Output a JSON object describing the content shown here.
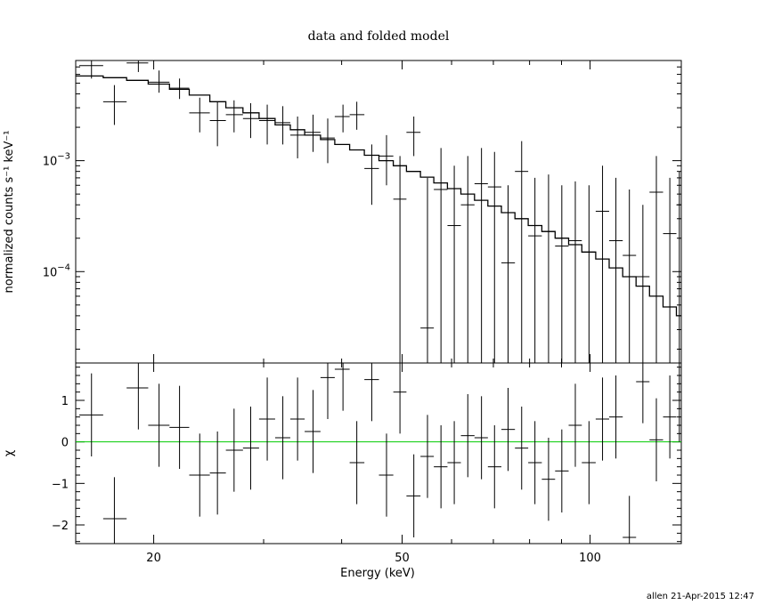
{
  "chart_data": {
    "type": "scatter",
    "title": "data and folded model",
    "xlabel": "Energy (keV)",
    "footer": "allen 21-Apr-2015 12:47",
    "x_scale": "log",
    "xlim": [
      15,
      140
    ],
    "x_ticks": [
      {
        "value": 20,
        "label": "20"
      },
      {
        "value": 50,
        "label": "50"
      },
      {
        "value": 100,
        "label": "100"
      }
    ],
    "top_panel": {
      "ylabel": "normalized counts s⁻¹ keV⁻¹",
      "y_scale": "log",
      "ylim": [
        1.5e-05,
        0.008
      ],
      "y_ticks": [
        {
          "value": 0.001,
          "label_base": "10",
          "label_exp": "−3"
        },
        {
          "value": 0.0001,
          "label_base": "10",
          "label_exp": "−4"
        }
      ],
      "data_points": [
        {
          "x": 15.9,
          "xlo": 15.2,
          "xhi": 16.6,
          "y": 0.0072,
          "ylo": 0.0055,
          "yhi": 0.0082
        },
        {
          "x": 17.3,
          "xlo": 16.6,
          "xhi": 18.1,
          "y": 0.0034,
          "ylo": 0.0021,
          "yhi": 0.0048
        },
        {
          "x": 18.9,
          "xlo": 18.1,
          "xhi": 19.6,
          "y": 0.0076,
          "ylo": 0.0063,
          "yhi": 0.0082
        },
        {
          "x": 20.4,
          "xlo": 19.6,
          "xhi": 21.2,
          "y": 0.0051,
          "ylo": 0.0041,
          "yhi": 0.0065
        },
        {
          "x": 22.0,
          "xlo": 21.2,
          "xhi": 22.8,
          "y": 0.0045,
          "ylo": 0.0036,
          "yhi": 0.0055
        },
        {
          "x": 23.7,
          "xlo": 22.8,
          "xhi": 24.6,
          "y": 0.0027,
          "ylo": 0.0018,
          "yhi": 0.0037
        },
        {
          "x": 25.3,
          "xlo": 24.6,
          "xhi": 26.1,
          "y": 0.0023,
          "ylo": 0.00135,
          "yhi": 0.0034
        },
        {
          "x": 26.9,
          "xlo": 26.1,
          "xhi": 27.8,
          "y": 0.0026,
          "ylo": 0.0018,
          "yhi": 0.0035
        },
        {
          "x": 28.6,
          "xlo": 27.8,
          "xhi": 29.5,
          "y": 0.0024,
          "ylo": 0.0016,
          "yhi": 0.0033
        },
        {
          "x": 30.4,
          "xlo": 29.5,
          "xhi": 31.3,
          "y": 0.0023,
          "ylo": 0.0014,
          "yhi": 0.0032
        },
        {
          "x": 32.2,
          "xlo": 31.3,
          "xhi": 33.1,
          "y": 0.0022,
          "ylo": 0.0014,
          "yhi": 0.0031
        },
        {
          "x": 34.0,
          "xlo": 33.1,
          "xhi": 34.9,
          "y": 0.0017,
          "ylo": 0.00105,
          "yhi": 0.0025
        },
        {
          "x": 36.0,
          "xlo": 34.9,
          "xhi": 37.0,
          "y": 0.0018,
          "ylo": 0.0012,
          "yhi": 0.0026
        },
        {
          "x": 38.0,
          "xlo": 37.0,
          "xhi": 39.0,
          "y": 0.0016,
          "ylo": 0.00095,
          "yhi": 0.0024
        },
        {
          "x": 40.2,
          "xlo": 39.0,
          "xhi": 41.2,
          "y": 0.0025,
          "ylo": 0.0018,
          "yhi": 0.0032
        },
        {
          "x": 42.3,
          "xlo": 41.2,
          "xhi": 43.5,
          "y": 0.0026,
          "ylo": 0.0019,
          "yhi": 0.0034
        },
        {
          "x": 44.7,
          "xlo": 43.5,
          "xhi": 45.9,
          "y": 0.00085,
          "ylo": 0.0004,
          "yhi": 0.0014
        },
        {
          "x": 47.2,
          "xlo": 45.9,
          "xhi": 48.4,
          "y": 0.0011,
          "ylo": 0.0006,
          "yhi": 0.0017
        },
        {
          "x": 49.6,
          "xlo": 48.4,
          "xhi": 50.8,
          "y": 0.00045,
          "ylo": 1.5e-05,
          "yhi": 0.0011
        },
        {
          "x": 52.2,
          "xlo": 50.8,
          "xhi": 53.5,
          "y": 0.0018,
          "ylo": 0.0011,
          "yhi": 0.0025
        },
        {
          "x": 54.9,
          "xlo": 53.5,
          "xhi": 56.2,
          "y": 3.1e-05,
          "ylo": 1.5e-05,
          "yhi": 0.0007
        },
        {
          "x": 57.7,
          "xlo": 56.2,
          "xhi": 59.1,
          "y": 0.00055,
          "ylo": 1.5e-05,
          "yhi": 0.0013
        },
        {
          "x": 60.6,
          "xlo": 59.1,
          "xhi": 62.1,
          "y": 0.00026,
          "ylo": 1.5e-05,
          "yhi": 0.0009
        },
        {
          "x": 63.7,
          "xlo": 62.1,
          "xhi": 65.3,
          "y": 0.0004,
          "ylo": 1.5e-05,
          "yhi": 0.0011
        },
        {
          "x": 67.0,
          "xlo": 65.3,
          "xhi": 68.6,
          "y": 0.00062,
          "ylo": 1.5e-05,
          "yhi": 0.0013
        },
        {
          "x": 70.3,
          "xlo": 68.6,
          "xhi": 72.1,
          "y": 0.00058,
          "ylo": 1.5e-05,
          "yhi": 0.0012
        },
        {
          "x": 73.9,
          "xlo": 72.1,
          "xhi": 75.8,
          "y": 0.00012,
          "ylo": 1.5e-05,
          "yhi": 0.0006
        },
        {
          "x": 77.7,
          "xlo": 75.8,
          "xhi": 79.6,
          "y": 0.0008,
          "ylo": 1.5e-05,
          "yhi": 0.0015
        },
        {
          "x": 81.6,
          "xlo": 79.6,
          "xhi": 83.7,
          "y": 0.00021,
          "ylo": 1.5e-05,
          "yhi": 0.0007
        },
        {
          "x": 85.8,
          "xlo": 83.7,
          "xhi": 87.9,
          "y": 0.00023,
          "ylo": 1.5e-05,
          "yhi": 0.00075
        },
        {
          "x": 90.1,
          "xlo": 87.9,
          "xhi": 92.4,
          "y": 0.00017,
          "ylo": 1.5e-05,
          "yhi": 0.0006
        },
        {
          "x": 94.7,
          "xlo": 92.4,
          "xhi": 97.0,
          "y": 0.00019,
          "ylo": 1.5e-05,
          "yhi": 0.00065
        },
        {
          "x": 99.6,
          "xlo": 97.0,
          "xhi": 102.1,
          "y": 0.00015,
          "ylo": 1.5e-05,
          "yhi": 0.0006
        },
        {
          "x": 104.7,
          "xlo": 102.1,
          "xhi": 107.3,
          "y": 0.00035,
          "ylo": 1.5e-05,
          "yhi": 0.0009
        },
        {
          "x": 110.0,
          "xlo": 107.3,
          "xhi": 112.8,
          "y": 0.00019,
          "ylo": 1.5e-05,
          "yhi": 0.0007
        },
        {
          "x": 115.6,
          "xlo": 112.8,
          "xhi": 118.5,
          "y": 0.00014,
          "ylo": 1.5e-05,
          "yhi": 0.00055
        },
        {
          "x": 121.5,
          "xlo": 118.5,
          "xhi": 124.5,
          "y": 9e-05,
          "ylo": 1.5e-05,
          "yhi": 0.0004
        },
        {
          "x": 127.7,
          "xlo": 124.5,
          "xhi": 130.9,
          "y": 0.00052,
          "ylo": 1.5e-05,
          "yhi": 0.0011
        },
        {
          "x": 134.2,
          "xlo": 130.9,
          "xhi": 137.5,
          "y": 0.00022,
          "ylo": 1.5e-05,
          "yhi": 0.0007
        },
        {
          "x": 139.0,
          "xlo": 137.5,
          "xhi": 140.0,
          "y": 0.0004,
          "ylo": 1.5e-05,
          "yhi": 0.0008
        }
      ],
      "model_steps": [
        {
          "x0": 15.0,
          "x1": 16.6,
          "y": 0.0058
        },
        {
          "x0": 16.6,
          "x1": 18.1,
          "y": 0.0056
        },
        {
          "x0": 18.1,
          "x1": 19.6,
          "y": 0.0053
        },
        {
          "x0": 19.6,
          "x1": 21.2,
          "y": 0.0049
        },
        {
          "x0": 21.2,
          "x1": 22.8,
          "y": 0.0044
        },
        {
          "x0": 22.8,
          "x1": 24.6,
          "y": 0.0039
        },
        {
          "x0": 24.6,
          "x1": 26.1,
          "y": 0.0034
        },
        {
          "x0": 26.1,
          "x1": 27.8,
          "y": 0.003
        },
        {
          "x0": 27.8,
          "x1": 29.5,
          "y": 0.0027
        },
        {
          "x0": 29.5,
          "x1": 31.3,
          "y": 0.0024
        },
        {
          "x0": 31.3,
          "x1": 33.1,
          "y": 0.0021
        },
        {
          "x0": 33.1,
          "x1": 34.9,
          "y": 0.0019
        },
        {
          "x0": 34.9,
          "x1": 37.0,
          "y": 0.0017
        },
        {
          "x0": 37.0,
          "x1": 39.0,
          "y": 0.00155
        },
        {
          "x0": 39.0,
          "x1": 41.2,
          "y": 0.0014
        },
        {
          "x0": 41.2,
          "x1": 43.5,
          "y": 0.00125
        },
        {
          "x0": 43.5,
          "x1": 45.9,
          "y": 0.00112
        },
        {
          "x0": 45.9,
          "x1": 48.4,
          "y": 0.001
        },
        {
          "x0": 48.4,
          "x1": 50.8,
          "y": 0.0009
        },
        {
          "x0": 50.8,
          "x1": 53.5,
          "y": 0.0008
        },
        {
          "x0": 53.5,
          "x1": 56.2,
          "y": 0.00071
        },
        {
          "x0": 56.2,
          "x1": 59.1,
          "y": 0.00063
        },
        {
          "x0": 59.1,
          "x1": 62.1,
          "y": 0.00056
        },
        {
          "x0": 62.1,
          "x1": 65.3,
          "y": 0.0005
        },
        {
          "x0": 65.3,
          "x1": 68.6,
          "y": 0.00044
        },
        {
          "x0": 68.6,
          "x1": 72.1,
          "y": 0.00039
        },
        {
          "x0": 72.1,
          "x1": 75.8,
          "y": 0.00034
        },
        {
          "x0": 75.8,
          "x1": 79.6,
          "y": 0.0003
        },
        {
          "x0": 79.6,
          "x1": 83.7,
          "y": 0.00026
        },
        {
          "x0": 83.7,
          "x1": 87.9,
          "y": 0.00023
        },
        {
          "x0": 87.9,
          "x1": 92.4,
          "y": 0.0002
        },
        {
          "x0": 92.4,
          "x1": 97.0,
          "y": 0.000175
        },
        {
          "x0": 97.0,
          "x1": 102.1,
          "y": 0.00015
        },
        {
          "x0": 102.1,
          "x1": 107.3,
          "y": 0.00013
        },
        {
          "x0": 107.3,
          "x1": 112.8,
          "y": 0.000108
        },
        {
          "x0": 112.8,
          "x1": 118.5,
          "y": 9e-05
        },
        {
          "x0": 118.5,
          "x1": 124.5,
          "y": 7.4e-05
        },
        {
          "x0": 124.5,
          "x1": 130.9,
          "y": 6e-05
        },
        {
          "x0": 130.9,
          "x1": 137.5,
          "y": 4.8e-05
        },
        {
          "x0": 137.5,
          "x1": 140.0,
          "y": 4e-05
        }
      ]
    },
    "bottom_panel": {
      "ylabel": "χ",
      "y_scale": "linear",
      "ylim": [
        -2.45,
        1.9
      ],
      "y_ticks": [
        {
          "value": 1,
          "label": "1"
        },
        {
          "value": 0,
          "label": "0"
        },
        {
          "value": -1,
          "label": "−1"
        },
        {
          "value": -2,
          "label": "−2"
        }
      ],
      "zero_line_color": "#00cc00",
      "residuals": [
        {
          "x": 15.9,
          "xlo": 15.2,
          "xhi": 16.6,
          "y": 0.65,
          "ylo": -0.35,
          "yhi": 1.65
        },
        {
          "x": 17.3,
          "xlo": 16.6,
          "xhi": 18.1,
          "y": -1.85,
          "ylo": -2.45,
          "yhi": -0.85
        },
        {
          "x": 18.9,
          "xlo": 18.1,
          "xhi": 19.6,
          "y": 1.3,
          "ylo": 0.3,
          "yhi": 1.9
        },
        {
          "x": 20.4,
          "xlo": 19.6,
          "xhi": 21.2,
          "y": 0.4,
          "ylo": -0.6,
          "yhi": 1.4
        },
        {
          "x": 22.0,
          "xlo": 21.2,
          "xhi": 22.8,
          "y": 0.35,
          "ylo": -0.65,
          "yhi": 1.35
        },
        {
          "x": 23.7,
          "xlo": 22.8,
          "xhi": 24.6,
          "y": -0.8,
          "ylo": -1.8,
          "yhi": 0.2
        },
        {
          "x": 25.3,
          "xlo": 24.6,
          "xhi": 26.1,
          "y": -0.75,
          "ylo": -1.75,
          "yhi": 0.25
        },
        {
          "x": 26.9,
          "xlo": 26.1,
          "xhi": 27.8,
          "y": -0.2,
          "ylo": -1.2,
          "yhi": 0.8
        },
        {
          "x": 28.6,
          "xlo": 27.8,
          "xhi": 29.5,
          "y": -0.15,
          "ylo": -1.15,
          "yhi": 0.85
        },
        {
          "x": 30.4,
          "xlo": 29.5,
          "xhi": 31.3,
          "y": 0.55,
          "ylo": -0.45,
          "yhi": 1.55
        },
        {
          "x": 32.2,
          "xlo": 31.3,
          "xhi": 33.1,
          "y": 0.1,
          "ylo": -0.9,
          "yhi": 1.1
        },
        {
          "x": 34.0,
          "xlo": 33.1,
          "xhi": 34.9,
          "y": 0.55,
          "ylo": -0.45,
          "yhi": 1.55
        },
        {
          "x": 36.0,
          "xlo": 34.9,
          "xhi": 37.0,
          "y": 0.25,
          "ylo": -0.75,
          "yhi": 1.25
        },
        {
          "x": 38.0,
          "xlo": 37.0,
          "xhi": 39.0,
          "y": 1.55,
          "ylo": 0.55,
          "yhi": 1.9
        },
        {
          "x": 40.2,
          "xlo": 39.0,
          "xhi": 41.2,
          "y": 1.75,
          "ylo": 0.75,
          "yhi": 1.9
        },
        {
          "x": 42.3,
          "xlo": 41.2,
          "xhi": 43.5,
          "y": -0.5,
          "ylo": -1.5,
          "yhi": 0.5
        },
        {
          "x": 44.7,
          "xlo": 43.5,
          "xhi": 45.9,
          "y": 1.5,
          "ylo": 0.5,
          "yhi": 1.9
        },
        {
          "x": 47.2,
          "xlo": 45.9,
          "xhi": 48.4,
          "y": -0.8,
          "ylo": -1.8,
          "yhi": 0.2
        },
        {
          "x": 49.6,
          "xlo": 48.4,
          "xhi": 50.8,
          "y": 1.2,
          "ylo": 0.2,
          "yhi": 1.9
        },
        {
          "x": 52.2,
          "xlo": 50.8,
          "xhi": 53.5,
          "y": -1.3,
          "ylo": -2.3,
          "yhi": -0.3
        },
        {
          "x": 54.9,
          "xlo": 53.5,
          "xhi": 56.2,
          "y": -0.35,
          "ylo": -1.35,
          "yhi": 0.65
        },
        {
          "x": 57.7,
          "xlo": 56.2,
          "xhi": 59.1,
          "y": -0.6,
          "ylo": -1.6,
          "yhi": 0.4
        },
        {
          "x": 60.6,
          "xlo": 59.1,
          "xhi": 62.1,
          "y": -0.5,
          "ylo": -1.5,
          "yhi": 0.5
        },
        {
          "x": 63.7,
          "xlo": 62.1,
          "xhi": 65.3,
          "y": 0.15,
          "ylo": -0.85,
          "yhi": 1.15
        },
        {
          "x": 67.0,
          "xlo": 65.3,
          "xhi": 68.6,
          "y": 0.1,
          "ylo": -0.9,
          "yhi": 1.1
        },
        {
          "x": 70.3,
          "xlo": 68.6,
          "xhi": 72.1,
          "y": -0.6,
          "ylo": -1.6,
          "yhi": 0.4
        },
        {
          "x": 73.9,
          "xlo": 72.1,
          "xhi": 75.8,
          "y": 0.3,
          "ylo": -0.7,
          "yhi": 1.3
        },
        {
          "x": 77.7,
          "xlo": 75.8,
          "xhi": 79.6,
          "y": -0.15,
          "ylo": -1.15,
          "yhi": 0.85
        },
        {
          "x": 81.6,
          "xlo": 79.6,
          "xhi": 83.7,
          "y": -0.5,
          "ylo": -1.5,
          "yhi": 0.5
        },
        {
          "x": 85.8,
          "xlo": 83.7,
          "xhi": 87.9,
          "y": -0.9,
          "ylo": -1.9,
          "yhi": 0.1
        },
        {
          "x": 90.1,
          "xlo": 87.9,
          "xhi": 92.4,
          "y": -0.7,
          "ylo": -1.7,
          "yhi": 0.3
        },
        {
          "x": 94.7,
          "xlo": 92.4,
          "xhi": 97.0,
          "y": 0.4,
          "ylo": -0.6,
          "yhi": 1.4
        },
        {
          "x": 99.6,
          "xlo": 97.0,
          "xhi": 102.1,
          "y": -0.5,
          "ylo": -1.5,
          "yhi": 0.5
        },
        {
          "x": 104.7,
          "xlo": 102.1,
          "xhi": 107.3,
          "y": 0.55,
          "ylo": -0.45,
          "yhi": 1.55
        },
        {
          "x": 110.0,
          "xlo": 107.3,
          "xhi": 112.8,
          "y": 0.6,
          "ylo": -0.4,
          "yhi": 1.6
        },
        {
          "x": 115.6,
          "xlo": 112.8,
          "xhi": 118.5,
          "y": -2.3,
          "ylo": -2.45,
          "yhi": -1.3
        },
        {
          "x": 121.5,
          "xlo": 118.5,
          "xhi": 124.5,
          "y": 1.45,
          "ylo": 0.45,
          "yhi": 1.9
        },
        {
          "x": 127.7,
          "xlo": 124.5,
          "xhi": 130.9,
          "y": 0.05,
          "ylo": -0.95,
          "yhi": 1.05
        },
        {
          "x": 134.2,
          "xlo": 130.9,
          "xhi": 137.5,
          "y": 0.6,
          "ylo": -0.4,
          "yhi": 1.6
        },
        {
          "x": 139.0,
          "xlo": 137.5,
          "xhi": 140.0,
          "y": 1.0,
          "ylo": 0.0,
          "yhi": 1.9
        }
      ]
    }
  }
}
